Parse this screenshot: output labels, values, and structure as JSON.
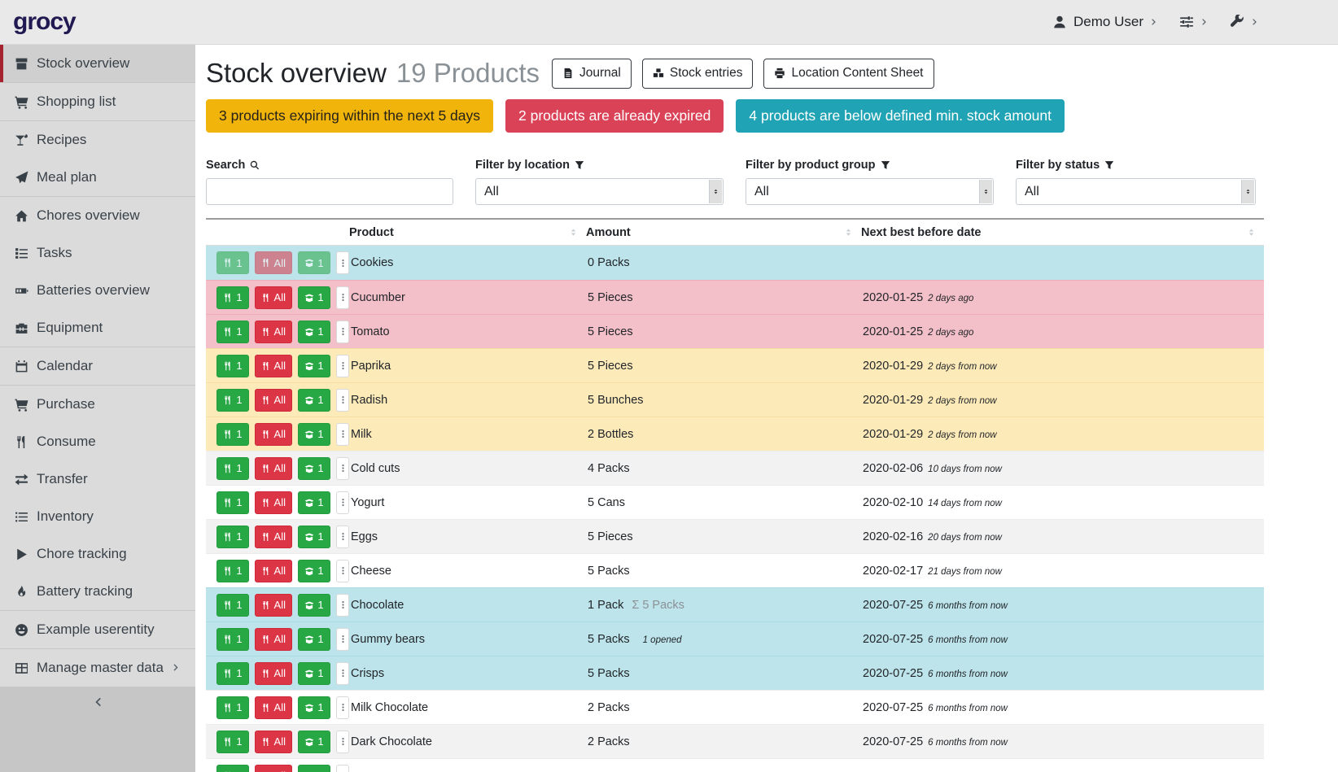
{
  "header": {
    "logo": "grocy",
    "user_label": "Demo User",
    "user_icon": "user",
    "settings_icon": "sliders",
    "admin_icon": "wrench",
    "chevron_icon": "chevron-right"
  },
  "sidebar": {
    "collapse_icon": "chevron-left",
    "submenu_icon": "chevron-right",
    "items": [
      {
        "label": "Stock overview",
        "icon": "box",
        "active": true,
        "divider_after": true
      },
      {
        "label": "Shopping list",
        "icon": "cart",
        "divider_after": true
      },
      {
        "label": "Recipes",
        "icon": "cocktail"
      },
      {
        "label": "Meal plan",
        "icon": "plane",
        "divider_after": true
      },
      {
        "label": "Chores overview",
        "icon": "home"
      },
      {
        "label": "Tasks",
        "icon": "tasks"
      },
      {
        "label": "Batteries overview",
        "icon": "battery"
      },
      {
        "label": "Equipment",
        "icon": "toolbox",
        "divider_after": true
      },
      {
        "label": "Calendar",
        "icon": "calendar",
        "divider_after": true
      },
      {
        "label": "Purchase",
        "icon": "cart"
      },
      {
        "label": "Consume",
        "icon": "utensils"
      },
      {
        "label": "Transfer",
        "icon": "exchange"
      },
      {
        "label": "Inventory",
        "icon": "list"
      },
      {
        "label": "Chore tracking",
        "icon": "play"
      },
      {
        "label": "Battery tracking",
        "icon": "fire",
        "divider_after": true
      },
      {
        "label": "Example userentity",
        "icon": "smile",
        "divider_after": true
      },
      {
        "label": "Manage master data",
        "icon": "table",
        "has_submenu": true
      }
    ]
  },
  "page": {
    "title": "Stock overview",
    "subtitle": "19 Products",
    "toolbar": [
      {
        "label": "Journal",
        "icon": "file"
      },
      {
        "label": "Stock entries",
        "icon": "cubes"
      },
      {
        "label": "Location Content Sheet",
        "icon": "print"
      }
    ],
    "banners": [
      {
        "text": "3 products expiring within the next 5 days",
        "type": "warning",
        "color": "#f0b40a"
      },
      {
        "text": "2 products are already expired",
        "type": "danger",
        "color": "#da4257"
      },
      {
        "text": "4 products are below defined min. stock amount",
        "type": "info",
        "color": "#20a3b4"
      }
    ]
  },
  "filters": {
    "search": {
      "label": "Search",
      "icon": "search",
      "value": "",
      "placeholder": ""
    },
    "filter_icon": "filter",
    "selects": [
      {
        "label": "Filter by location",
        "value": "All"
      },
      {
        "label": "Filter by product group",
        "value": "All"
      },
      {
        "label": "Filter by status",
        "value": "All"
      }
    ]
  },
  "table": {
    "columns": [
      "Product",
      "Amount",
      "Next best before date"
    ],
    "sort_icon": "sort",
    "row_buttons": {
      "consume_one": {
        "label": "1",
        "icon": "utensils"
      },
      "consume_all": {
        "label": "All",
        "icon": "utensils"
      },
      "open_one": {
        "label": "1",
        "icon": "box-open"
      },
      "menu": {
        "icon": "ellipsis-v"
      }
    },
    "rows": [
      {
        "product": "Cookies",
        "amount": "0 Packs",
        "amount_agg": "",
        "amount_note": "",
        "date": "",
        "date_note": "",
        "status": "info",
        "muted": true
      },
      {
        "product": "Cucumber",
        "amount": "5 Pieces",
        "amount_agg": "",
        "amount_note": "",
        "date": "2020-01-25",
        "date_note": "2 days ago",
        "status": "danger"
      },
      {
        "product": "Tomato",
        "amount": "5 Pieces",
        "amount_agg": "",
        "amount_note": "",
        "date": "2020-01-25",
        "date_note": "2 days ago",
        "status": "danger"
      },
      {
        "product": "Paprika",
        "amount": "5 Pieces",
        "amount_agg": "",
        "amount_note": "",
        "date": "2020-01-29",
        "date_note": "2 days from now",
        "status": "warning"
      },
      {
        "product": "Radish",
        "amount": "5 Bunches",
        "amount_agg": "",
        "amount_note": "",
        "date": "2020-01-29",
        "date_note": "2 days from now",
        "status": "warning"
      },
      {
        "product": "Milk",
        "amount": "2 Bottles",
        "amount_agg": "",
        "amount_note": "",
        "date": "2020-01-29",
        "date_note": "2 days from now",
        "status": "warning"
      },
      {
        "product": "Cold cuts",
        "amount": "4 Packs",
        "amount_agg": "",
        "amount_note": "",
        "date": "2020-02-06",
        "date_note": "10 days from now",
        "status": ""
      },
      {
        "product": "Yogurt",
        "amount": "5 Cans",
        "amount_agg": "",
        "amount_note": "",
        "date": "2020-02-10",
        "date_note": "14 days from now",
        "status": ""
      },
      {
        "product": "Eggs",
        "amount": "5 Pieces",
        "amount_agg": "",
        "amount_note": "",
        "date": "2020-02-16",
        "date_note": "20 days from now",
        "status": ""
      },
      {
        "product": "Cheese",
        "amount": "5 Packs",
        "amount_agg": "",
        "amount_note": "",
        "date": "2020-02-17",
        "date_note": "21 days from now",
        "status": ""
      },
      {
        "product": "Chocolate",
        "amount": "1 Pack",
        "amount_agg": "Σ 5 Packs",
        "amount_note": "",
        "date": "2020-07-25",
        "date_note": "6 months from now",
        "status": "info"
      },
      {
        "product": "Gummy bears",
        "amount": "5 Packs",
        "amount_agg": "",
        "amount_note": "1 opened",
        "date": "2020-07-25",
        "date_note": "6 months from now",
        "status": "info"
      },
      {
        "product": "Crisps",
        "amount": "5 Packs",
        "amount_agg": "",
        "amount_note": "",
        "date": "2020-07-25",
        "date_note": "6 months from now",
        "status": "info"
      },
      {
        "product": "Milk Chocolate",
        "amount": "2 Packs",
        "amount_agg": "",
        "amount_note": "",
        "date": "2020-07-25",
        "date_note": "6 months from now",
        "status": ""
      },
      {
        "product": "Dark Chocolate",
        "amount": "2 Packs",
        "amount_agg": "",
        "amount_note": "",
        "date": "2020-07-25",
        "date_note": "6 months from now",
        "status": ""
      },
      {
        "product": "",
        "amount": "",
        "amount_agg": "",
        "amount_note": "",
        "date": "",
        "date_note": "",
        "status": "",
        "partial": true
      }
    ]
  },
  "colors": {
    "accent_red": "#a5232f",
    "navbar_bg": "#e9e9e9",
    "sidebar_bg": "#dbdbdb",
    "sidebar_active_bg": "#cfcfcf",
    "logo": "#211a52",
    "row_info": "#bce4ea",
    "row_danger": "#f3bfc8",
    "row_warning": "#fdeab9",
    "row_zebra": "#f2f2f2",
    "btn_green": "#28a745",
    "btn_red": "#dc3545"
  }
}
